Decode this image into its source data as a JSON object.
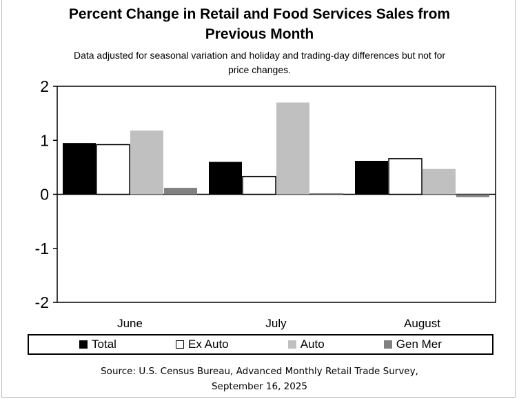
{
  "chart_data": {
    "type": "bar",
    "title_line1": "Percent Change in Retail and Food Services Sales from",
    "title_line2": "Previous Month",
    "subtitle_line1": "Data adjusted for seasonal variation and holiday and trading-day differences but not for",
    "subtitle_line2": "price changes.",
    "categories": [
      "June",
      "July",
      "August"
    ],
    "series": [
      {
        "name": "Total",
        "values": [
          0.95,
          0.6,
          0.62
        ],
        "color": "#000000"
      },
      {
        "name": "Ex Auto",
        "values": [
          0.92,
          0.33,
          0.66
        ],
        "color": "#ffffff"
      },
      {
        "name": "Auto",
        "values": [
          1.18,
          1.7,
          0.47
        ],
        "color": "#c0c0c0"
      },
      {
        "name": "Gen Mer",
        "values": [
          0.12,
          0.02,
          -0.05
        ],
        "color": "#808080"
      }
    ],
    "ylim": [
      -2,
      2
    ],
    "yticks": [
      "2",
      "1",
      "0",
      "-1",
      "-2"
    ],
    "source_line1": "Source: U.S. Census Bureau, Advanced Monthly Retail Trade Survey,",
    "source_line2": "September 16, 2025"
  }
}
